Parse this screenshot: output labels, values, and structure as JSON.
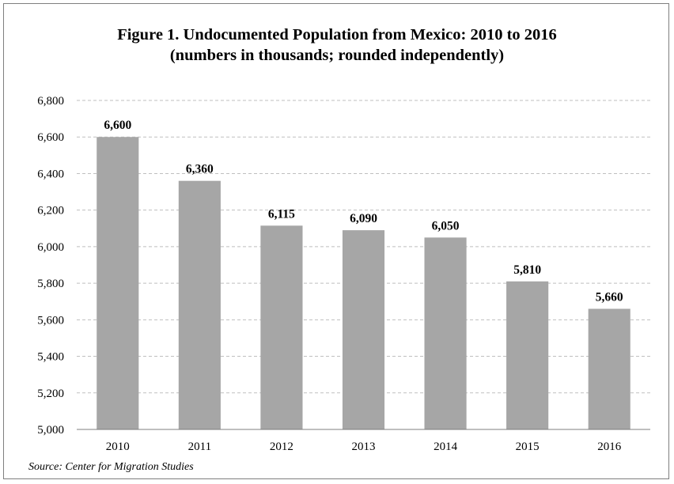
{
  "chart_data": {
    "type": "bar",
    "title": "Figure 1. Undocumented Population from Mexico: 2010 to 2016",
    "subtitle": "(numbers in thousands; rounded independently)",
    "categories": [
      "2010",
      "2011",
      "2012",
      "2013",
      "2014",
      "2015",
      "2016"
    ],
    "values": [
      6600,
      6360,
      6115,
      6090,
      6050,
      5810,
      5660
    ],
    "data_labels": [
      "6,600",
      "6,360",
      "6,115",
      "6,090",
      "6,050",
      "5,810",
      "5,660"
    ],
    "ylim": [
      5000,
      6800
    ],
    "yticks": [
      5000,
      5200,
      5400,
      5600,
      5800,
      6000,
      6200,
      6400,
      6600,
      6800
    ],
    "ytick_labels": [
      "5,000",
      "5,200",
      "5,400",
      "5,600",
      "5,800",
      "6,000",
      "6,200",
      "6,400",
      "6,600",
      "6,800"
    ],
    "xlabel": "",
    "ylabel": "",
    "grid": true,
    "legend": "none",
    "source": "Source:  Center for Migration Studies",
    "colors": {
      "bar": "#a6a6a6",
      "grid": "#bfbfbf",
      "axis": "#7f7f7f",
      "frame": "#7f7f7f"
    }
  }
}
